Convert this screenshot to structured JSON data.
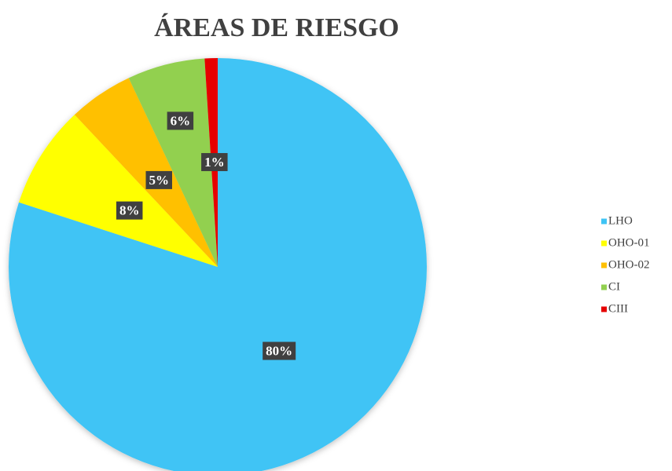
{
  "chart_data": {
    "type": "pie",
    "title": "ÁREAS DE RIESGO",
    "categories": [
      "LHO",
      "OHO-01",
      "OHO-02",
      "CI",
      "CIII"
    ],
    "values": [
      80,
      8,
      5,
      6,
      1
    ],
    "value_labels": [
      "80%",
      "8%",
      "5%",
      "6%",
      "1%"
    ],
    "colors": [
      "#3fc4f5",
      "#ffff00",
      "#ffc000",
      "#92d050",
      "#e60000"
    ],
    "legend": "right"
  }
}
